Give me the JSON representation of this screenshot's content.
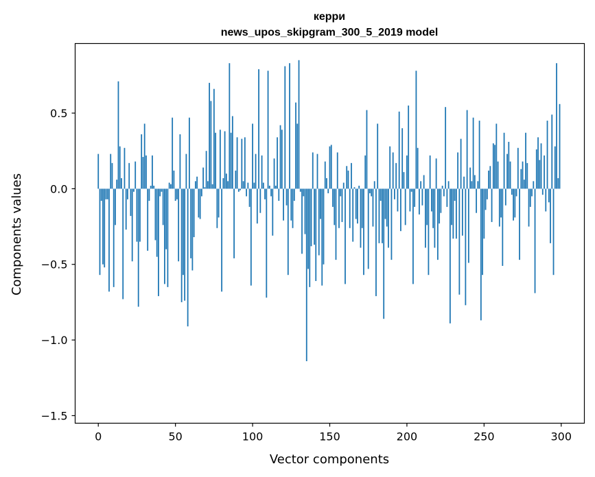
{
  "chart_data": {
    "type": "bar",
    "title": "керри",
    "subtitle": "news_upos_skipgram_300_5_2019 model",
    "xlabel": "Vector components",
    "ylabel": "Components values",
    "xlim": [
      -15,
      315
    ],
    "ylim": [
      -1.55,
      0.96
    ],
    "x_ticks": [
      0,
      50,
      100,
      150,
      200,
      250,
      300
    ],
    "y_ticks": [
      -1.5,
      -1.0,
      -0.5,
      0.0,
      0.5
    ],
    "y_tick_labels": [
      "−1.5",
      "−1.0",
      "−0.5",
      "0.0",
      "0.5"
    ],
    "bar_color": "#1f77b4",
    "series": [
      {
        "name": "components",
        "values": [
          0.23,
          -0.57,
          -0.08,
          -0.5,
          -0.52,
          -0.07,
          -0.07,
          -0.68,
          0.23,
          0.17,
          -0.65,
          -0.24,
          0.06,
          0.71,
          0.28,
          0.07,
          -0.73,
          0.27,
          -0.27,
          -0.07,
          0.17,
          -0.18,
          -0.48,
          -0.02,
          0.18,
          -0.35,
          -0.78,
          -0.35,
          0.36,
          0.21,
          0.43,
          0.22,
          -0.41,
          -0.08,
          0.02,
          0.22,
          0.02,
          -0.34,
          -0.45,
          -0.71,
          -0.05,
          -0.02,
          -0.24,
          -0.63,
          -0.4,
          -0.65,
          0.04,
          0.03,
          0.47,
          0.12,
          -0.08,
          -0.07,
          -0.48,
          0.36,
          -0.75,
          -0.57,
          -0.74,
          0.23,
          -0.91,
          0.47,
          -0.46,
          -0.54,
          -0.32,
          0.05,
          0.08,
          -0.19,
          -0.2,
          -0.05,
          0.14,
          0.01,
          0.25,
          0.05,
          0.7,
          0.58,
          0.03,
          0.66,
          0.37,
          -0.26,
          -0.19,
          0.39,
          -0.68,
          0.07,
          0.38,
          0.1,
          0.05,
          0.83,
          0.37,
          0.48,
          -0.46,
          0.12,
          0.34,
          -0.02,
          -0.01,
          0.33,
          0.05,
          0.34,
          -0.05,
          0.04,
          -0.12,
          -0.64,
          0.43,
          0.04,
          0.23,
          -0.23,
          0.79,
          -0.16,
          0.22,
          0.04,
          -0.07,
          -0.72,
          0.78,
          0.02,
          -0.05,
          -0.31,
          0.2,
          0.02,
          0.34,
          -0.08,
          0.42,
          0.39,
          -0.21,
          0.81,
          -0.11,
          -0.57,
          0.83,
          -0.21,
          -0.26,
          -0.08,
          0.57,
          0.43,
          0.85,
          -0.02,
          -0.43,
          -0.05,
          -0.3,
          -1.14,
          -0.53,
          -0.65,
          -0.38,
          0.24,
          -0.37,
          -0.61,
          0.23,
          -0.44,
          -0.2,
          -0.64,
          -0.5,
          0.18,
          0.07,
          -0.03,
          0.28,
          0.29,
          -0.12,
          -0.24,
          -0.47,
          0.24,
          -0.26,
          -0.05,
          -0.22,
          0.04,
          -0.63,
          0.15,
          0.12,
          -0.26,
          0.17,
          -0.35,
          0.01,
          -0.2,
          -0.23,
          0.02,
          -0.39,
          -0.26,
          -0.57,
          0.22,
          0.52,
          -0.53,
          -0.03,
          -0.05,
          -0.25,
          0.05,
          -0.71,
          0.43,
          -0.36,
          -0.08,
          -0.36,
          -0.86,
          -0.2,
          -0.25,
          -0.39,
          0.28,
          -0.47,
          0.24,
          -0.07,
          0.17,
          -0.15,
          0.51,
          -0.28,
          0.4,
          0.11,
          -0.24,
          0.22,
          0.55,
          -0.15,
          -0.02,
          -0.63,
          -0.12,
          0.78,
          0.27,
          -0.17,
          0.05,
          -0.11,
          0.09,
          -0.39,
          -0.24,
          -0.57,
          0.22,
          -0.15,
          -0.26,
          -0.39,
          0.2,
          -0.47,
          -0.23,
          -0.16,
          0.02,
          -0.05,
          0.54,
          -0.12,
          0.05,
          -0.89,
          -0.24,
          -0.33,
          -0.08,
          -0.33,
          0.24,
          -0.7,
          0.33,
          -0.31,
          0.08,
          -0.77,
          0.52,
          -0.49,
          0.14,
          0.05,
          0.47,
          0.09,
          -0.16,
          0.05,
          0.45,
          -0.87,
          -0.57,
          -0.33,
          -0.14,
          -0.07,
          0.12,
          0.15,
          -0.22,
          0.3,
          0.29,
          0.43,
          0.18,
          -0.25,
          -0.19,
          -0.51,
          0.37,
          -0.11,
          0.23,
          0.31,
          0.18,
          -0.04,
          -0.21,
          -0.19,
          -0.05,
          0.27,
          -0.47,
          0.13,
          0.18,
          0.06,
          0.37,
          0.17,
          -0.25,
          -0.12,
          -0.05,
          0.05,
          -0.69,
          0.26,
          0.34,
          0.19,
          0.3,
          -0.04,
          0.22,
          -0.15,
          0.45,
          -0.09,
          -0.36,
          0.49,
          -0.57,
          0.28,
          0.83,
          0.07,
          0.56
        ]
      }
    ]
  }
}
